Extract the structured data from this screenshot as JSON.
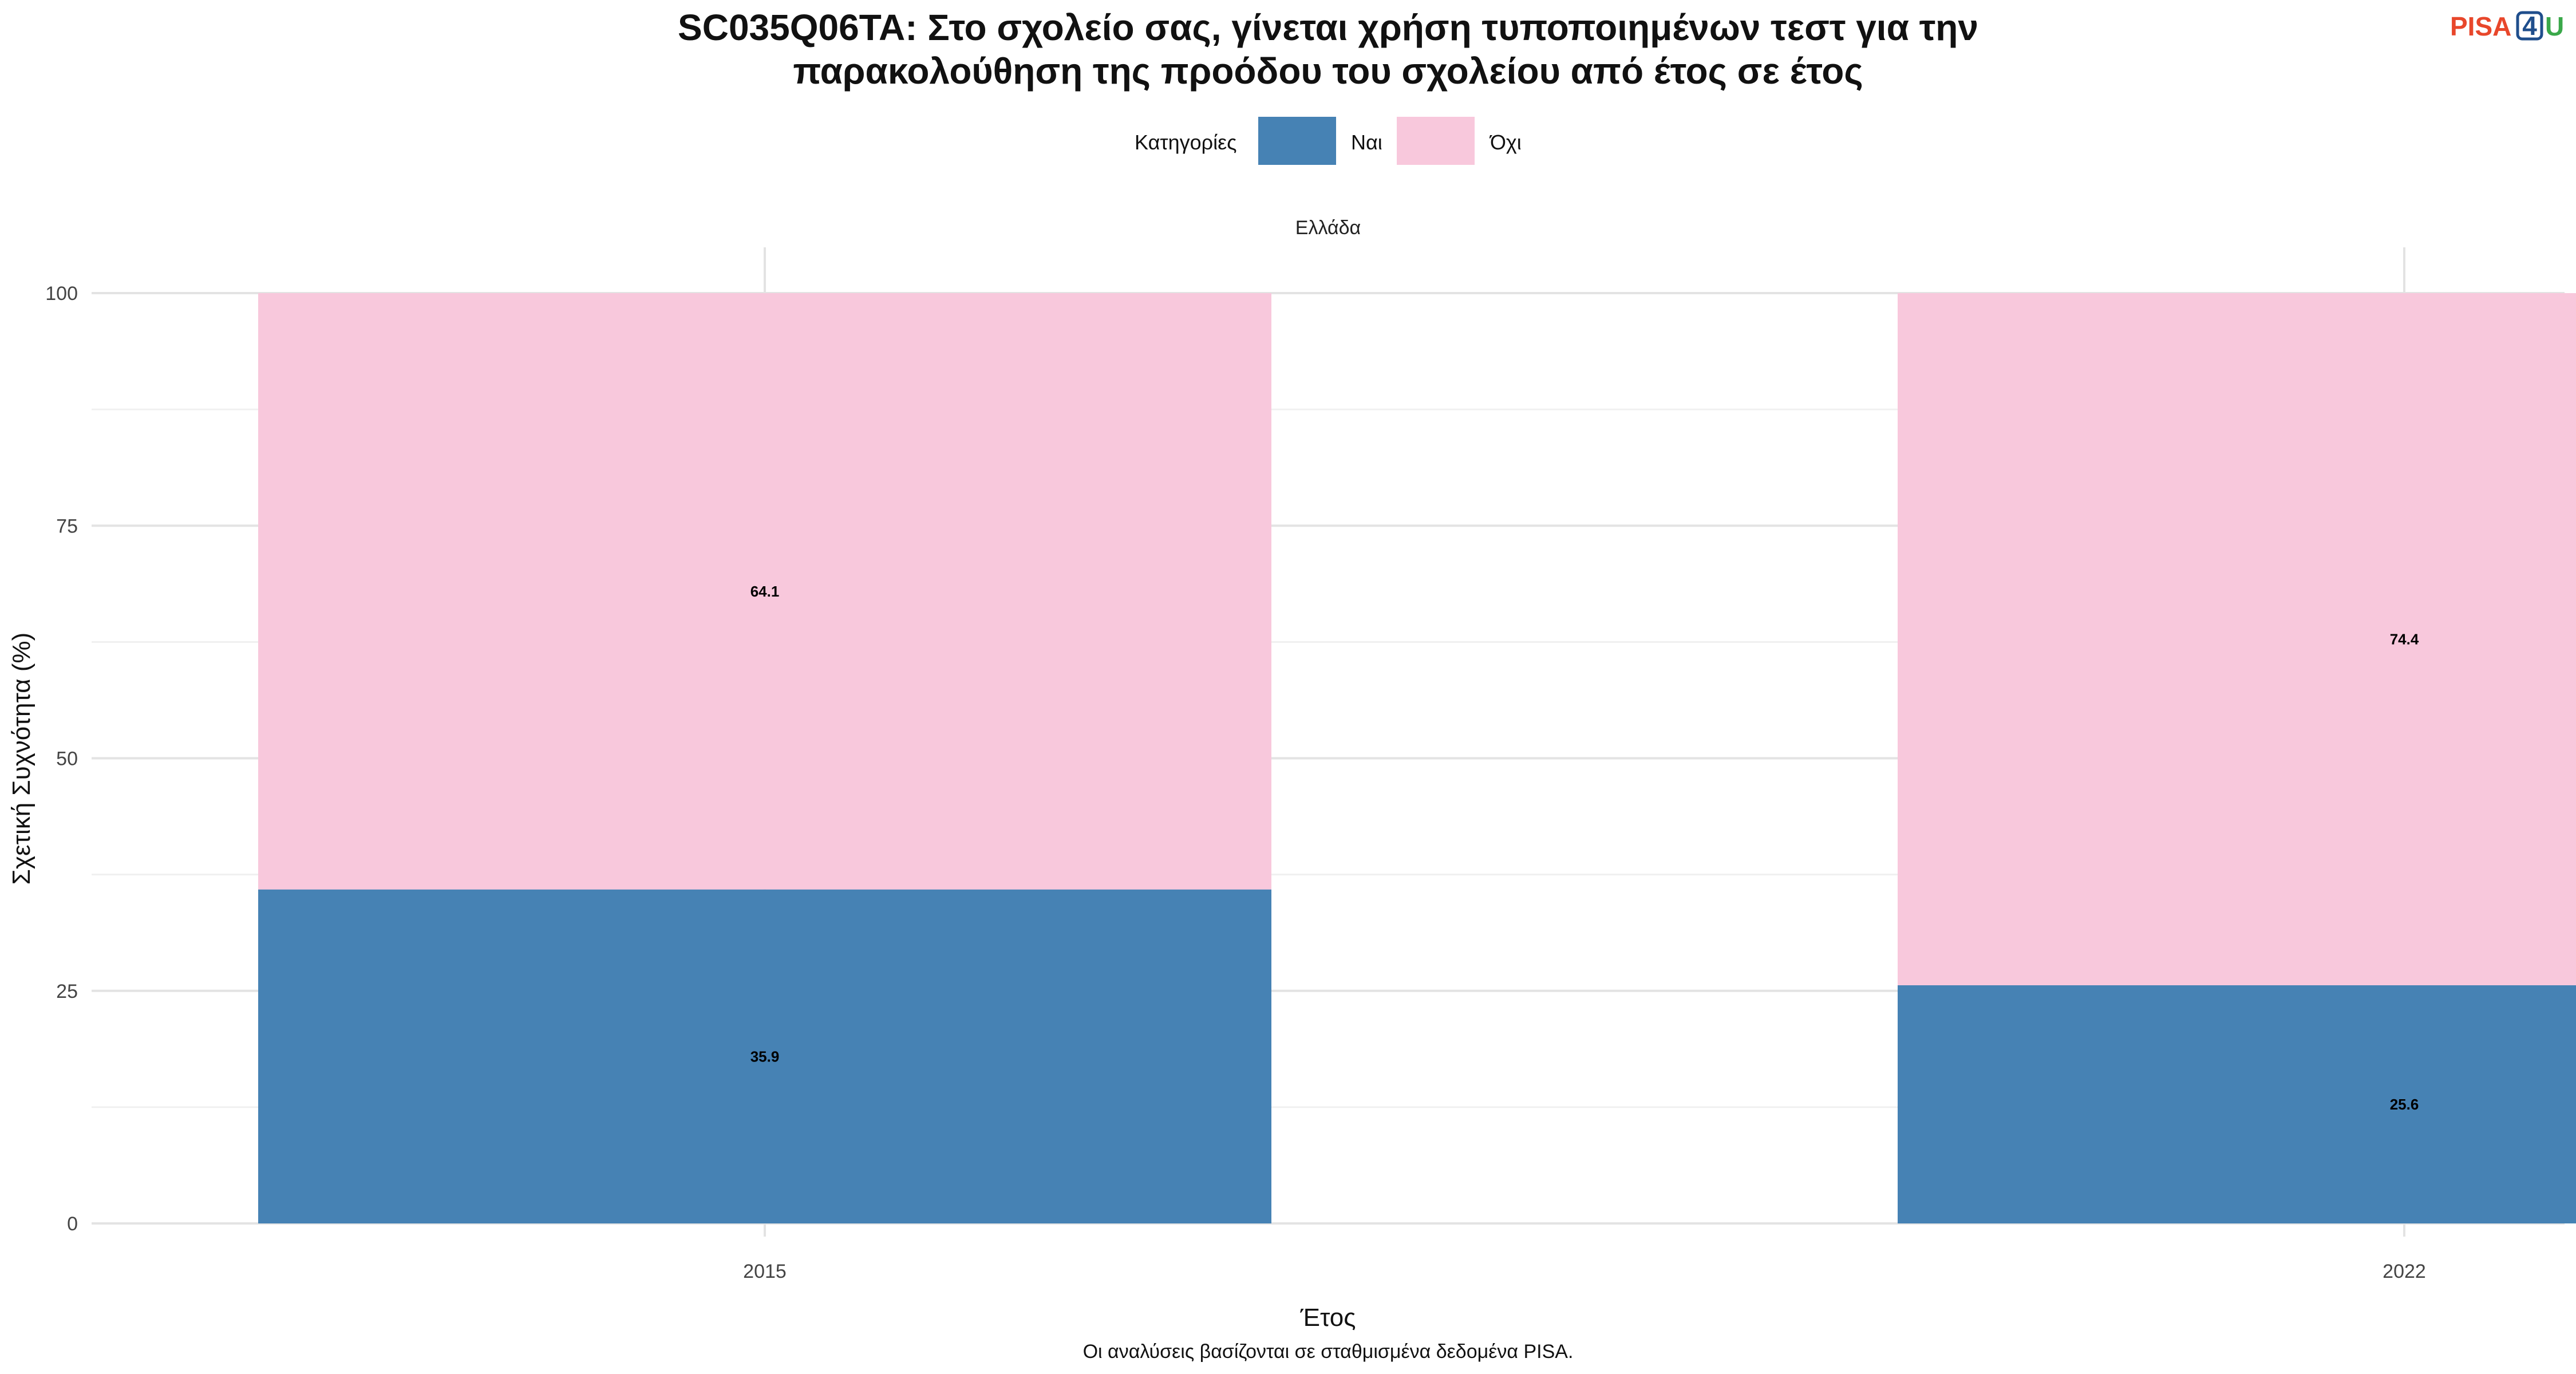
{
  "title_lines": [
    "SC035Q06TA: Στο σχολείο σας, γίνεται χρήση τυποποιημένων τεστ για την",
    "παρακολούθηση της προόδου του σχολείου από έτος σε έτος"
  ],
  "logo": {
    "text_pisa": "PISA",
    "text_4": "4",
    "text_u": "U",
    "color_pisa": "#e8472b",
    "color_4": "#1f4e8c",
    "color_u": "#3aa84a"
  },
  "legend": {
    "title": "Κατηγορίες"
  },
  "facet_label": "Ελλάδα",
  "caption": "Οι αναλύσεις βασίζονται σε σταθμισμένα δεδομένα PISA.",
  "chart_data": {
    "type": "bar",
    "stacked": true,
    "categories": [
      "2015",
      "2022"
    ],
    "series": [
      {
        "name": "Ναι",
        "color": "#4682b4",
        "values": [
          35.9,
          25.6
        ]
      },
      {
        "name": "Όχι",
        "color": "#f8c8dc",
        "values": [
          64.1,
          74.4
        ]
      }
    ],
    "xlabel": "Έτος",
    "ylabel": "Σχετική Συχνότητα (%)",
    "ylim": [
      0,
      100
    ],
    "yticks": [
      0,
      25,
      50,
      75,
      100
    ],
    "grid": true,
    "legend_position": "top"
  }
}
